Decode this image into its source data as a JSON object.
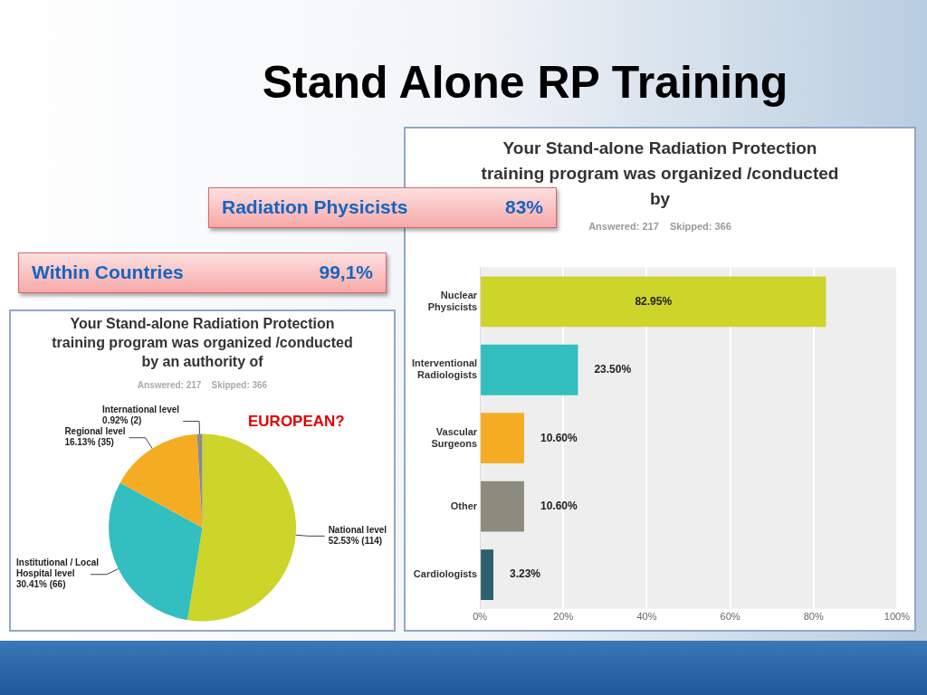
{
  "chart_data": [
    {
      "type": "other",
      "title": "Stand Alone RP Training",
      "annotations": [
        "Radiation Physicists 83%",
        "Within Countries 99,1%"
      ]
    },
    {
      "type": "pie",
      "title": "Your Stand-alone Radiation Protection training program was organized /conducted by an authority of",
      "subtitle": "Answered: 217    Skipped: 366",
      "categories": [
        "National level",
        "Institutional / Local Hospital level",
        "Regional level",
        "International level"
      ],
      "values": [
        52.53,
        30.41,
        16.13,
        0.92
      ],
      "colors": [
        "#cdd42a",
        "#33bebf",
        "#f4ad22",
        "#8c8c8c"
      ],
      "value_labels": [
        "52.53% (114)",
        "30.41% (66)",
        "16.13% (35)",
        "0.92% (2)"
      ],
      "annotations": [
        "EUROPEAN?"
      ]
    },
    {
      "type": "bar",
      "orientation": "horizontal",
      "title": "Your Stand-alone Radiation Protection training program was organized /conducted by",
      "subtitle": "Answered: 217    Skipped: 366",
      "categories": [
        "Nuclear Physicists",
        "Interventional Radiologists",
        "Vascular Surgeons",
        "Other",
        "Cardiologists"
      ],
      "values": [
        82.95,
        23.5,
        10.6,
        10.6,
        3.23
      ],
      "colors": [
        "#cdd42a",
        "#33bebf",
        "#f4ad22",
        "#8b8c7e",
        "#2d5f6e"
      ],
      "value_labels": [
        "82.95%",
        "23.50%",
        "10.60%",
        "10.60%",
        "3.23%"
      ],
      "xlim": [
        0,
        100
      ],
      "xticks": [
        {
          "value": 0,
          "label": "0%"
        },
        {
          "value": 20,
          "label": "20%"
        },
        {
          "value": 40,
          "label": "40%"
        },
        {
          "value": 60,
          "label": "60%"
        },
        {
          "value": 80,
          "label": "80%"
        },
        {
          "value": 100,
          "label": "100%"
        }
      ],
      "grid": "x"
    }
  ]
}
